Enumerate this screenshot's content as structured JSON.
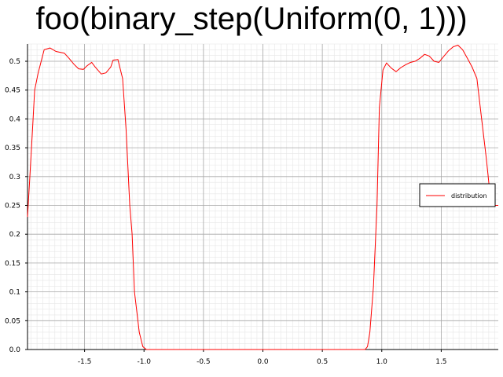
{
  "chart_data": {
    "type": "line",
    "title": "foo(binary_step(Uniform(0, 1)))",
    "xlabel": "",
    "ylabel": "",
    "xlim": [
      -1.98,
      1.98
    ],
    "ylim": [
      0,
      0.53
    ],
    "grid": true,
    "legend_position": "right",
    "line_color": "#ff0000",
    "x_ticks": [
      {
        "value": -1.5,
        "label": "-1.5"
      },
      {
        "value": -1.0,
        "label": "-1.0"
      },
      {
        "value": -0.5,
        "label": "-0.5"
      },
      {
        "value": 0.0,
        "label": "0.0"
      },
      {
        "value": 0.5,
        "label": "0.5"
      },
      {
        "value": 1.0,
        "label": "1.0"
      },
      {
        "value": 1.5,
        "label": "1.5"
      }
    ],
    "y_ticks": [
      {
        "value": 0.0,
        "label": "0.0"
      },
      {
        "value": 0.05,
        "label": "0.05"
      },
      {
        "value": 0.1,
        "label": "0.1"
      },
      {
        "value": 0.15,
        "label": "0.15"
      },
      {
        "value": 0.2,
        "label": "0.2"
      },
      {
        "value": 0.25,
        "label": "0.25"
      },
      {
        "value": 0.3,
        "label": "0.3"
      },
      {
        "value": 0.35,
        "label": "0.35"
      },
      {
        "value": 0.4,
        "label": "0.4"
      },
      {
        "value": 0.45,
        "label": "0.45"
      },
      {
        "value": 0.5,
        "label": "0.5"
      }
    ],
    "series": [
      {
        "name": "distribution",
        "x": [
          -1.98,
          -1.96,
          -1.94,
          -1.92,
          -1.89,
          -1.84,
          -1.79,
          -1.74,
          -1.67,
          -1.63,
          -1.59,
          -1.55,
          -1.51,
          -1.48,
          -1.44,
          -1.41,
          -1.36,
          -1.32,
          -1.28,
          -1.26,
          -1.22,
          -1.18,
          -1.15,
          -1.12,
          -1.1,
          -1.08,
          -1.04,
          -1.01,
          -0.98,
          -0.96,
          -0.93,
          -0.91,
          -0.88,
          -0.84,
          0.83,
          0.86,
          0.88,
          0.9,
          0.93,
          0.96,
          0.98,
          1.01,
          1.04,
          1.08,
          1.12,
          1.16,
          1.2,
          1.24,
          1.28,
          1.32,
          1.36,
          1.4,
          1.44,
          1.48,
          1.52,
          1.56,
          1.6,
          1.64,
          1.68,
          1.72,
          1.76,
          1.8,
          1.84,
          1.88,
          1.92,
          1.95,
          1.98
        ],
        "y": [
          0.23,
          0.3,
          0.375,
          0.45,
          0.48,
          0.52,
          0.523,
          0.517,
          0.514,
          0.505,
          0.495,
          0.487,
          0.486,
          0.492,
          0.498,
          0.49,
          0.478,
          0.48,
          0.49,
          0.502,
          0.503,
          0.47,
          0.38,
          0.25,
          0.2,
          0.1,
          0.03,
          0.005,
          0.0,
          0.0,
          0.0,
          0.0,
          0.0,
          0.0,
          0.0,
          0.0,
          0.005,
          0.03,
          0.11,
          0.25,
          0.42,
          0.485,
          0.497,
          0.488,
          0.482,
          0.489,
          0.494,
          0.498,
          0.5,
          0.505,
          0.512,
          0.509,
          0.5,
          0.498,
          0.508,
          0.518,
          0.525,
          0.528,
          0.52,
          0.505,
          0.49,
          0.47,
          0.4,
          0.33,
          0.25,
          0.25,
          0.25
        ]
      }
    ]
  }
}
